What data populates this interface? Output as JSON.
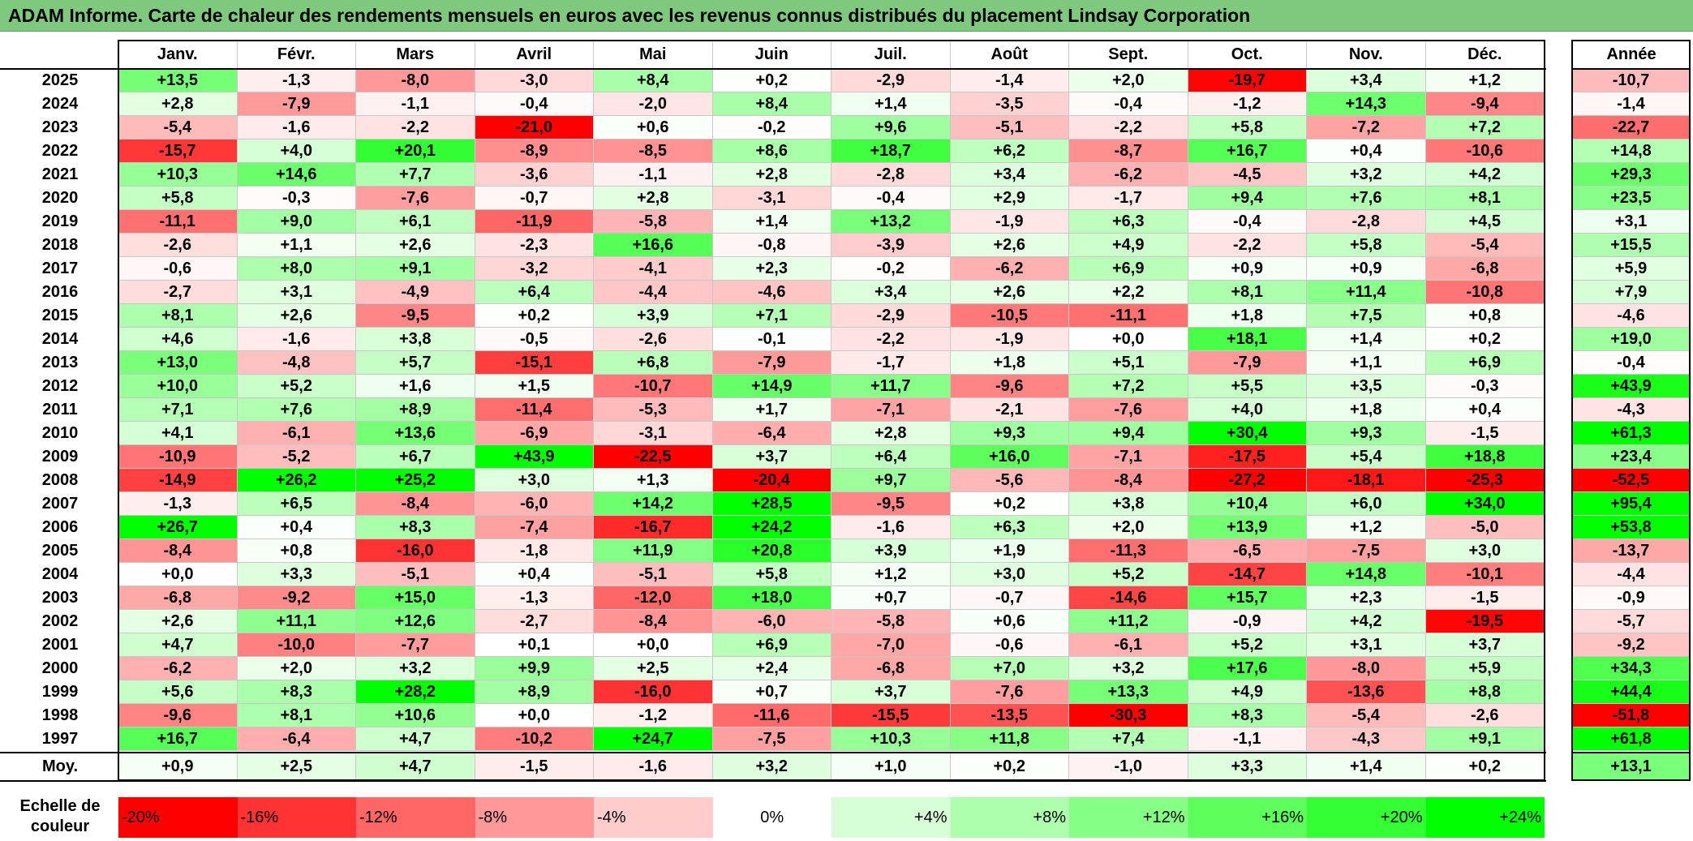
{
  "title": "ADAM Informe. Carte de chaleur des rendements mensuels en euros avec les revenus connus distribués du placement Lindsay Corporation",
  "chart_data": {
    "type": "heatmap",
    "months": [
      "Janv.",
      "Févr.",
      "Mars",
      "Avril",
      "Mai",
      "Juin",
      "Juil.",
      "Août",
      "Sept.",
      "Oct.",
      "Nov.",
      "Déc."
    ],
    "year_column_label": "Année",
    "rows": [
      {
        "year": "2025",
        "values": [
          13.5,
          -1.3,
          -8.0,
          -3.0,
          8.4,
          0.2,
          -2.9,
          -1.4,
          2.0,
          -19.7,
          3.4,
          1.2
        ],
        "annual": -10.7
      },
      {
        "year": "2024",
        "values": [
          2.8,
          -7.9,
          -1.1,
          -0.4,
          -2.0,
          8.4,
          1.4,
          -3.5,
          -0.4,
          -1.2,
          14.3,
          -9.4
        ],
        "annual": -1.4
      },
      {
        "year": "2023",
        "values": [
          -5.4,
          -1.6,
          -2.2,
          -21.0,
          0.6,
          -0.2,
          9.6,
          -5.1,
          -2.2,
          5.8,
          -7.2,
          7.2
        ],
        "annual": -22.7
      },
      {
        "year": "2022",
        "values": [
          -15.7,
          4.0,
          20.1,
          -8.9,
          -8.5,
          8.6,
          18.7,
          6.2,
          -8.7,
          16.7,
          0.4,
          -10.6
        ],
        "annual": 14.8
      },
      {
        "year": "2021",
        "values": [
          10.3,
          14.6,
          7.7,
          -3.6,
          -1.1,
          2.8,
          -2.8,
          3.4,
          -6.2,
          -4.5,
          3.2,
          4.2
        ],
        "annual": 29.3
      },
      {
        "year": "2020",
        "values": [
          5.8,
          -0.3,
          -7.6,
          -0.7,
          2.8,
          -3.1,
          -0.4,
          2.9,
          -1.7,
          9.4,
          7.6,
          8.1
        ],
        "annual": 23.5
      },
      {
        "year": "2019",
        "values": [
          -11.1,
          9.0,
          6.1,
          -11.9,
          -5.8,
          1.4,
          13.2,
          -1.9,
          6.3,
          -0.4,
          -2.8,
          4.5
        ],
        "annual": 3.1
      },
      {
        "year": "2018",
        "values": [
          -2.6,
          1.1,
          2.6,
          -2.3,
          16.6,
          -0.8,
          -3.9,
          2.6,
          4.9,
          -2.2,
          5.8,
          -5.4
        ],
        "annual": 15.5
      },
      {
        "year": "2017",
        "values": [
          -0.6,
          8.0,
          9.1,
          -3.2,
          -4.1,
          2.3,
          -0.2,
          -6.2,
          6.9,
          0.9,
          0.9,
          -6.8
        ],
        "annual": 5.9
      },
      {
        "year": "2016",
        "values": [
          -2.7,
          3.1,
          -4.9,
          6.4,
          -4.4,
          -4.6,
          3.4,
          2.6,
          2.2,
          8.1,
          11.4,
          -10.8
        ],
        "annual": 7.9
      },
      {
        "year": "2015",
        "values": [
          8.1,
          2.6,
          -9.5,
          0.2,
          3.9,
          7.1,
          -2.9,
          -10.5,
          -11.1,
          1.8,
          7.5,
          0.8
        ],
        "annual": -4.6
      },
      {
        "year": "2014",
        "values": [
          4.6,
          -1.6,
          3.8,
          -0.5,
          -2.6,
          -0.1,
          -2.2,
          -1.9,
          0.0,
          18.1,
          1.4,
          0.2
        ],
        "annual": 19.0
      },
      {
        "year": "2013",
        "values": [
          13.0,
          -4.8,
          5.7,
          -15.1,
          6.8,
          -7.9,
          -1.7,
          1.8,
          5.1,
          -7.9,
          1.1,
          6.9
        ],
        "annual": -0.4
      },
      {
        "year": "2012",
        "values": [
          10.0,
          5.2,
          1.6,
          1.5,
          -10.7,
          14.9,
          11.7,
          -9.6,
          7.2,
          5.5,
          3.5,
          -0.3
        ],
        "annual": 43.9
      },
      {
        "year": "2011",
        "values": [
          7.1,
          7.6,
          8.9,
          -11.4,
          -5.3,
          1.7,
          -7.1,
          -2.1,
          -7.6,
          4.0,
          1.8,
          0.4
        ],
        "annual": -4.3
      },
      {
        "year": "2010",
        "values": [
          4.1,
          -6.1,
          13.6,
          -6.9,
          -3.1,
          -6.4,
          2.8,
          9.3,
          9.4,
          30.4,
          9.3,
          -1.5
        ],
        "annual": 61.3
      },
      {
        "year": "2009",
        "values": [
          -10.9,
          -5.2,
          6.7,
          43.9,
          -22.5,
          3.7,
          6.4,
          16.0,
          -7.1,
          -17.5,
          5.4,
          18.8
        ],
        "annual": 23.4
      },
      {
        "year": "2008",
        "values": [
          -14.9,
          26.2,
          25.2,
          3.0,
          1.3,
          -20.4,
          9.7,
          -5.6,
          -8.4,
          -27.2,
          -18.1,
          -25.3
        ],
        "annual": -52.5
      },
      {
        "year": "2007",
        "values": [
          -1.3,
          6.5,
          -8.4,
          -6.0,
          14.2,
          28.5,
          -9.5,
          0.2,
          3.8,
          10.4,
          6.0,
          34.0
        ],
        "annual": 95.4
      },
      {
        "year": "2006",
        "values": [
          26.7,
          0.4,
          8.3,
          -7.4,
          -16.7,
          24.2,
          -1.6,
          6.3,
          2.0,
          13.9,
          1.2,
          -5.0
        ],
        "annual": 53.8
      },
      {
        "year": "2005",
        "values": [
          -8.4,
          0.8,
          -16.0,
          -1.8,
          11.9,
          20.8,
          3.9,
          1.9,
          -11.3,
          -6.5,
          -7.5,
          3.0
        ],
        "annual": -13.7
      },
      {
        "year": "2004",
        "values": [
          0.0,
          3.3,
          -5.1,
          0.4,
          -5.1,
          5.8,
          1.2,
          3.0,
          5.2,
          -14.7,
          14.8,
          -10.1
        ],
        "annual": -4.4
      },
      {
        "year": "2003",
        "values": [
          -6.8,
          -9.2,
          15.0,
          -1.3,
          -12.0,
          18.0,
          0.7,
          -0.7,
          -14.6,
          15.7,
          2.3,
          -1.5
        ],
        "annual": -0.9
      },
      {
        "year": "2002",
        "values": [
          2.6,
          11.1,
          12.6,
          -2.7,
          -8.4,
          -6.0,
          -5.8,
          0.6,
          11.2,
          -0.9,
          4.2,
          -19.5
        ],
        "annual": -5.7
      },
      {
        "year": "2001",
        "values": [
          4.7,
          -10.0,
          -7.7,
          0.1,
          0.0,
          6.9,
          -7.0,
          -0.6,
          -6.1,
          5.2,
          3.1,
          3.7
        ],
        "annual": -9.2
      },
      {
        "year": "2000",
        "values": [
          -6.2,
          2.0,
          3.2,
          9.9,
          2.5,
          2.4,
          -6.8,
          7.0,
          3.2,
          17.6,
          -8.0,
          5.9
        ],
        "annual": 34.3
      },
      {
        "year": "1999",
        "values": [
          5.6,
          8.3,
          28.2,
          8.9,
          -16.0,
          0.7,
          3.7,
          -7.6,
          13.3,
          4.9,
          -13.6,
          8.8
        ],
        "annual": 44.4
      },
      {
        "year": "1998",
        "values": [
          -9.6,
          8.1,
          10.6,
          0.0,
          -1.2,
          -11.6,
          -15.5,
          -13.5,
          -30.3,
          8.3,
          -5.4,
          -2.6
        ],
        "annual": -51.8
      },
      {
        "year": "1997",
        "values": [
          16.7,
          -6.4,
          4.7,
          -10.2,
          24.7,
          -7.5,
          10.3,
          11.8,
          7.4,
          -1.1,
          -4.3,
          9.1
        ],
        "annual": 61.8
      }
    ],
    "average_label": "Moy.",
    "average_values": [
      0.9,
      2.5,
      4.7,
      -1.5,
      -1.6,
      3.2,
      1.0,
      0.2,
      -1.0,
      3.3,
      1.4,
      0.2
    ],
    "average_annual": 13.1,
    "scale_label": "Echelle de couleur",
    "scale": [
      {
        "label": "-20%",
        "value": -20,
        "color": "#ff0000"
      },
      {
        "label": "-16%",
        "value": -16,
        "color": "#ff3333"
      },
      {
        "label": "-12%",
        "value": -12,
        "color": "#ff6666"
      },
      {
        "label": "-8%",
        "value": -8,
        "color": "#ff9999"
      },
      {
        "label": "-4%",
        "value": -4,
        "color": "#ffcccc"
      },
      {
        "label": "0%",
        "value": 0,
        "color": "#ffffff"
      },
      {
        "label": "+4%",
        "value": 4,
        "color": "#d6ffd6"
      },
      {
        "label": "+8%",
        "value": 8,
        "color": "#adffad"
      },
      {
        "label": "+12%",
        "value": 12,
        "color": "#85ff85"
      },
      {
        "label": "+16%",
        "value": 16,
        "color": "#5cff5c"
      },
      {
        "label": "+20%",
        "value": 20,
        "color": "#33ff33"
      },
      {
        "label": "+24%",
        "value": 24,
        "color": "#00ff00"
      }
    ]
  }
}
